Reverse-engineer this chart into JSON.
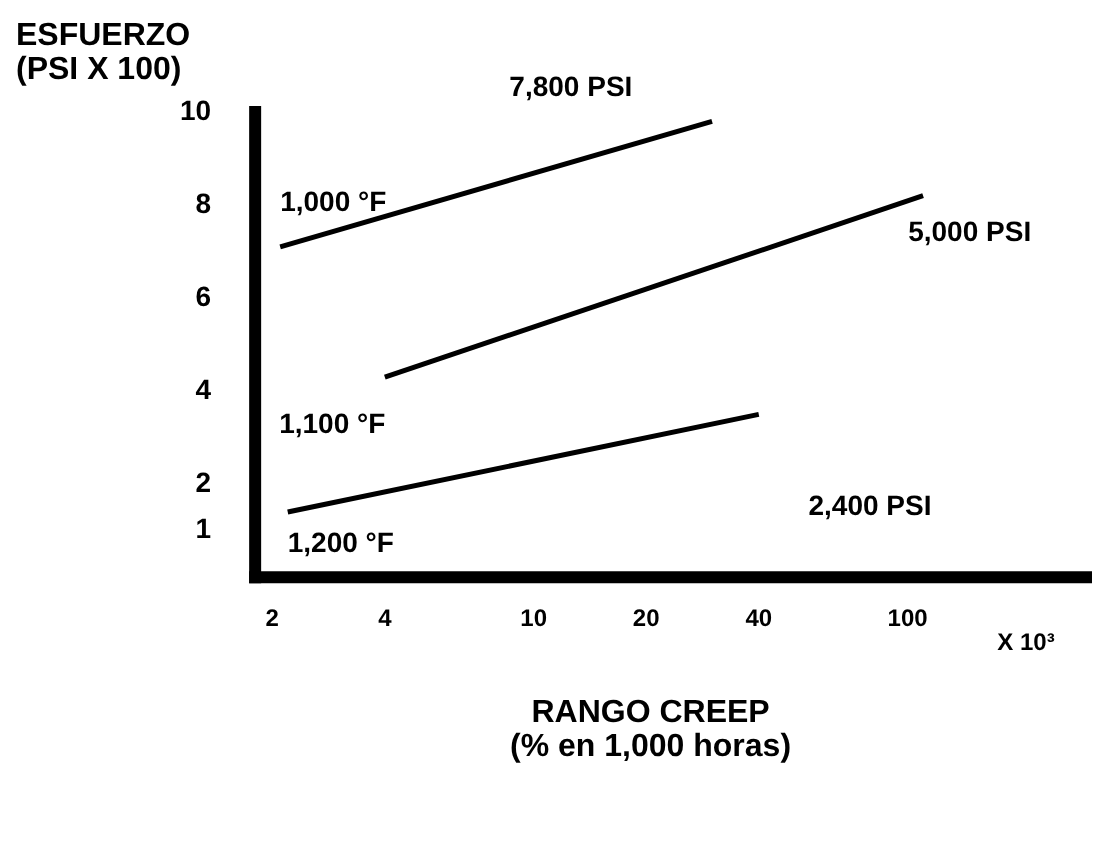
{
  "chart_data": {
    "type": "line",
    "xlabel": "RANGO CREEP\n(% en 1,000 horas)",
    "ylabel": "ESFUERZO\n(PSI X 100)",
    "log": "x",
    "xlim": [
      1.8,
      300
    ],
    "xticks": [
      2,
      4,
      10,
      20,
      40,
      100
    ],
    "ylim": [
      0,
      10
    ],
    "yticks": [
      1,
      2,
      4,
      6,
      8,
      10
    ],
    "grid": false,
    "legend": false,
    "marker": "none",
    "line_style": "solid",
    "series": [
      {
        "name": "1,000 °F",
        "color": "#000000",
        "x": [
          2.1,
          30
        ],
        "values": [
          7.1,
          9.8
        ]
      },
      {
        "name": "1,100 °F",
        "color": "#000000",
        "x": [
          4,
          110
        ],
        "values": [
          4.3,
          8.2
        ]
      },
      {
        "name": "1,200 °F",
        "color": "#000000",
        "x": [
          2.2,
          40
        ],
        "values": [
          1.4,
          3.5
        ]
      }
    ],
    "annotations": [
      "7,800 PSI",
      "5,000 PSI",
      "2,400 PSI",
      "X 10³"
    ]
  }
}
